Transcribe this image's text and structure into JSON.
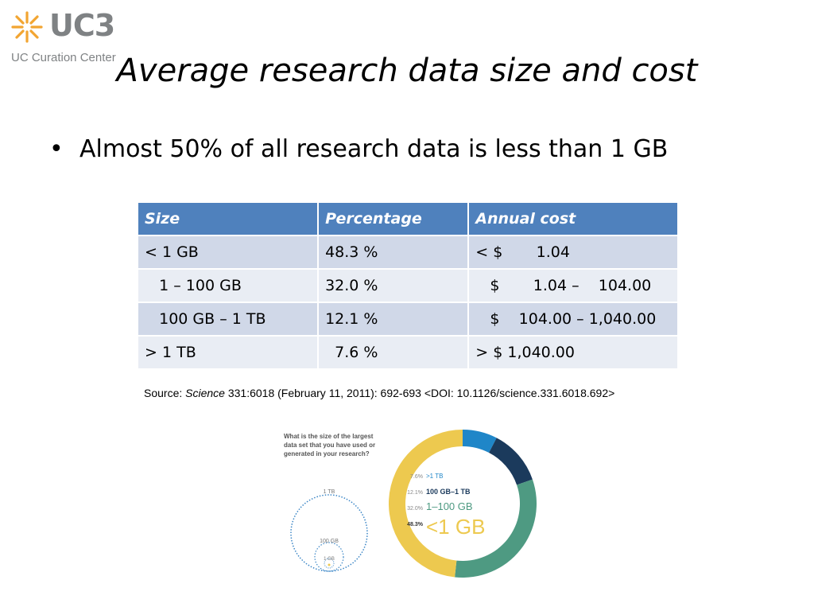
{
  "logo": {
    "text": "UC3",
    "subtitle": "UC Curation Center",
    "brand_color": "#f2a531"
  },
  "slide": {
    "title": "Average research data size and cost",
    "bullet": "Almost 50% of all research data is less than 1 GB"
  },
  "table": {
    "headers": [
      "Size",
      "Percentage",
      "Annual cost"
    ],
    "rows": [
      [
        "< 1 GB",
        "48.3 %",
        "< $       1.04"
      ],
      [
        "   1 – 100 GB",
        "32.0 %",
        "   $       1.04 –    104.00"
      ],
      [
        "   100 GB – 1 TB",
        "12.1 %",
        "   $    104.00 – 1,040.00"
      ],
      [
        "> 1 TB",
        "  7.6 %",
        "> $ 1,040.00"
      ]
    ],
    "header_color": "#4f81bd"
  },
  "source": {
    "prefix": "Source: ",
    "journal": "Science",
    "rest": " 331:6018 (February 11, 2011): 692-693 <DOI: 10.1126/science.331.6018.692>"
  },
  "infographic": {
    "question": [
      "What is the size of the largest",
      "data set that you have used or",
      "generated in your research?"
    ],
    "circle_labels": [
      "1 TB",
      "100 GB",
      "1 GB"
    ],
    "chart_data": {
      "type": "pie",
      "categories": [
        ">1 TB",
        "100 GB–1 TB",
        "1–100 GB",
        "<1 GB"
      ],
      "values": [
        7.6,
        12.1,
        32.0,
        48.3
      ],
      "value_labels": [
        "7.6%",
        "12.1%",
        "32.0%",
        "48.3%"
      ],
      "colors": [
        "#1f86c8",
        "#1b3a5c",
        "#4e9a82",
        "#edc94f"
      ]
    }
  }
}
